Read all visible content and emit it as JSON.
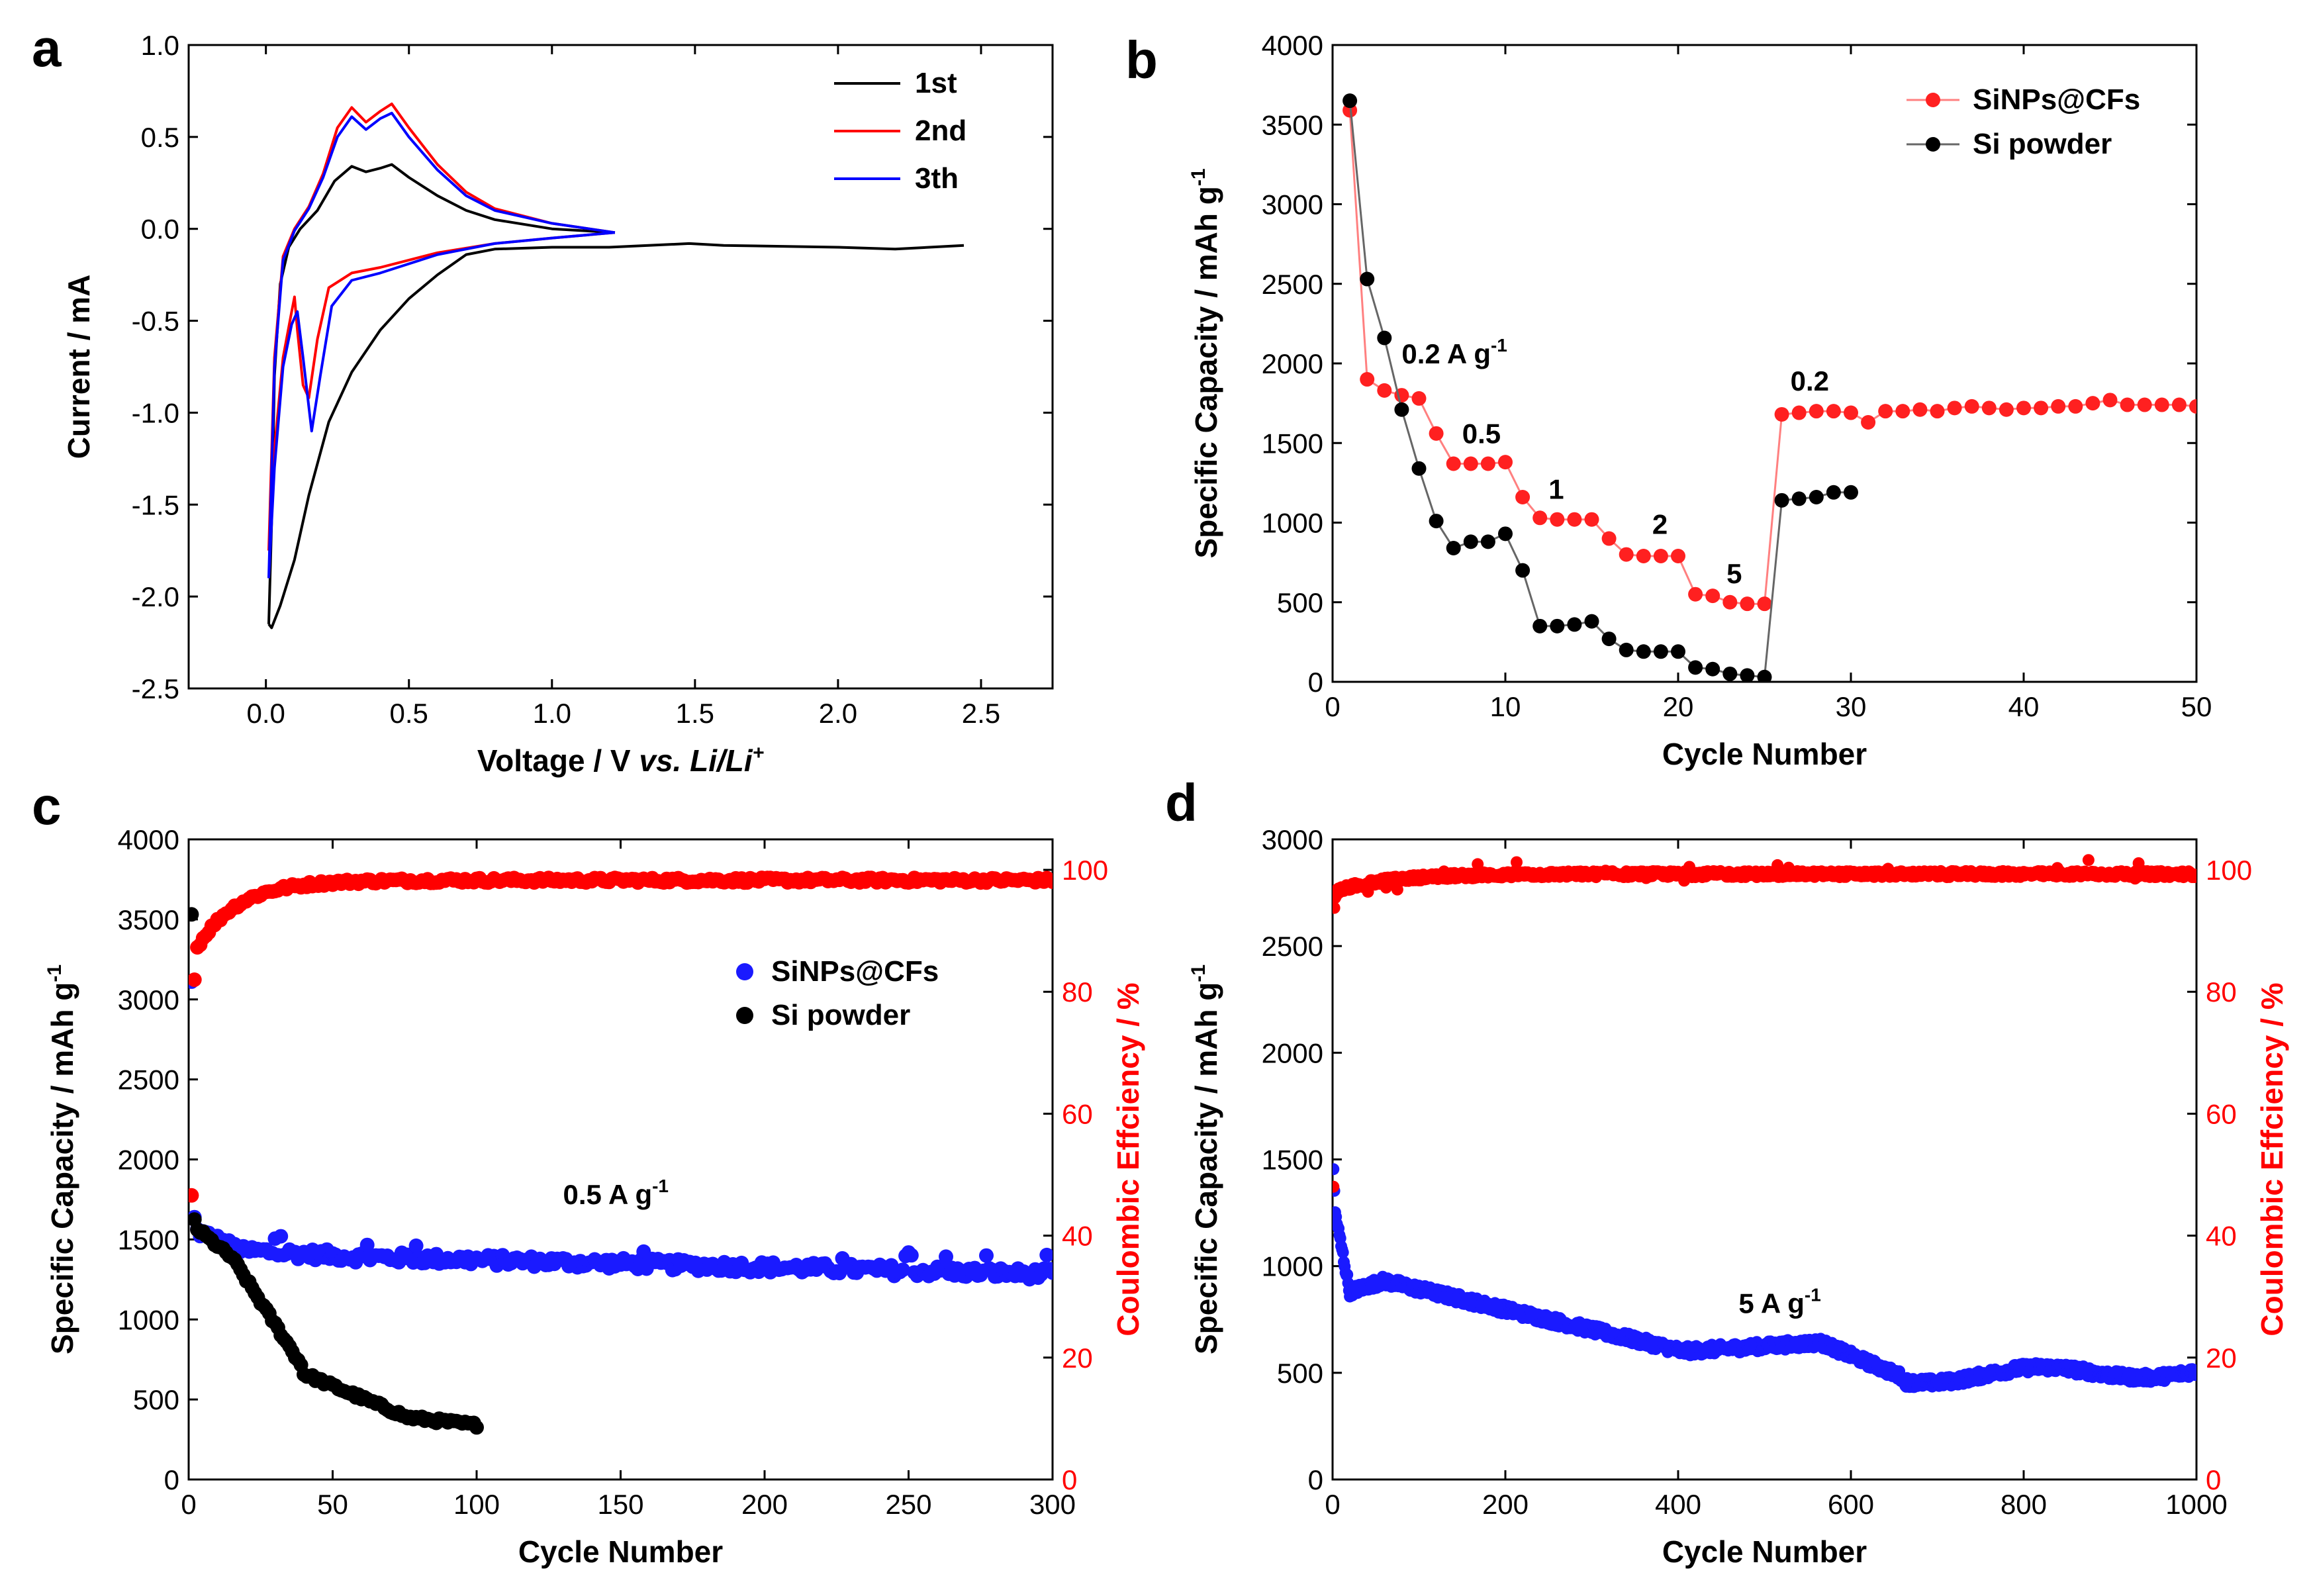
{
  "colors": {
    "black": "#000000",
    "red": "#ff0000",
    "blue": "#0000ff",
    "sinp": "#ff2020",
    "dot_blue": "#1a1aff"
  },
  "chart_data": [
    {
      "id": "a",
      "letter": "a",
      "type": "line",
      "xlabel_main": "Voltage / V ",
      "xlabel_italic": "vs. Li/Li",
      "xlabel_sup": "+",
      "ylabel": "Current / mA",
      "xlim": [
        -0.27,
        2.75
      ],
      "ylim": [
        -2.5,
        1.0
      ],
      "xticks": [
        "0.0",
        "0.5",
        "1.0",
        "1.5",
        "2.0",
        "2.5"
      ],
      "xtick_values": [
        0,
        0.5,
        1.0,
        1.5,
        2.0,
        2.5
      ],
      "yticks": [
        "-2.5",
        "-2.0",
        "-1.5",
        "-1.0",
        "-0.5",
        "0.0",
        "0.5",
        "1.0"
      ],
      "ytick_values": [
        -2.5,
        -2.0,
        -1.5,
        -1.0,
        -0.5,
        0.0,
        0.5,
        1.0
      ],
      "legend": [
        "1st",
        "2nd",
        "3th"
      ],
      "series": [
        {
          "name": "1st",
          "color": "#000000",
          "points": [
            [
              0.01,
              -2.15
            ],
            [
              0.02,
              -2.17
            ],
            [
              0.05,
              -2.05
            ],
            [
              0.1,
              -1.8
            ],
            [
              0.15,
              -1.45
            ],
            [
              0.22,
              -1.05
            ],
            [
              0.3,
              -0.78
            ],
            [
              0.4,
              -0.55
            ],
            [
              0.5,
              -0.38
            ],
            [
              0.6,
              -0.25
            ],
            [
              0.7,
              -0.14
            ],
            [
              0.8,
              -0.11
            ],
            [
              1.0,
              -0.1
            ],
            [
              1.2,
              -0.1
            ],
            [
              1.48,
              -0.08
            ],
            [
              1.6,
              -0.09
            ],
            [
              2.0,
              -0.1
            ],
            [
              2.2,
              -0.11
            ],
            [
              2.44,
              -0.09
            ],
            null,
            [
              0.01,
              -2.15
            ],
            [
              0.02,
              -1.6
            ],
            [
              0.03,
              -0.8
            ],
            [
              0.05,
              -0.3
            ],
            [
              0.08,
              -0.1
            ],
            [
              0.12,
              0.0
            ],
            [
              0.18,
              0.1
            ],
            [
              0.24,
              0.26
            ],
            [
              0.3,
              0.34
            ],
            [
              0.35,
              0.31
            ],
            [
              0.4,
              0.33
            ],
            [
              0.44,
              0.35
            ],
            [
              0.5,
              0.28
            ],
            [
              0.6,
              0.18
            ],
            [
              0.7,
              0.1
            ],
            [
              0.8,
              0.05
            ],
            [
              1.0,
              0.0
            ],
            [
              1.22,
              -0.02
            ]
          ]
        },
        {
          "name": "2nd",
          "color": "#ff0000",
          "points": [
            [
              0.01,
              -1.75
            ],
            [
              0.03,
              -1.2
            ],
            [
              0.06,
              -0.7
            ],
            [
              0.09,
              -0.45
            ],
            [
              0.1,
              -0.37
            ],
            [
              0.11,
              -0.55
            ],
            [
              0.13,
              -0.85
            ],
            [
              0.15,
              -0.92
            ],
            [
              0.18,
              -0.6
            ],
            [
              0.22,
              -0.32
            ],
            [
              0.3,
              -0.24
            ],
            [
              0.4,
              -0.21
            ],
            [
              0.5,
              -0.17
            ],
            [
              0.6,
              -0.13
            ],
            [
              0.8,
              -0.08
            ],
            [
              1.0,
              -0.05
            ],
            [
              1.22,
              -0.02
            ],
            null,
            [
              0.01,
              -1.75
            ],
            [
              0.03,
              -0.7
            ],
            [
              0.06,
              -0.15
            ],
            [
              0.1,
              0.0
            ],
            [
              0.15,
              0.12
            ],
            [
              0.2,
              0.3
            ],
            [
              0.25,
              0.55
            ],
            [
              0.3,
              0.66
            ],
            [
              0.35,
              0.58
            ],
            [
              0.4,
              0.64
            ],
            [
              0.44,
              0.68
            ],
            [
              0.5,
              0.55
            ],
            [
              0.6,
              0.35
            ],
            [
              0.7,
              0.2
            ],
            [
              0.8,
              0.11
            ],
            [
              1.0,
              0.03
            ],
            [
              1.22,
              -0.02
            ]
          ]
        },
        {
          "name": "3th",
          "color": "#0000ff",
          "points": [
            [
              0.01,
              -1.9
            ],
            [
              0.03,
              -1.3
            ],
            [
              0.06,
              -0.75
            ],
            [
              0.09,
              -0.52
            ],
            [
              0.11,
              -0.45
            ],
            [
              0.13,
              -0.7
            ],
            [
              0.16,
              -1.1
            ],
            [
              0.19,
              -0.8
            ],
            [
              0.23,
              -0.42
            ],
            [
              0.3,
              -0.28
            ],
            [
              0.4,
              -0.24
            ],
            [
              0.5,
              -0.19
            ],
            [
              0.6,
              -0.14
            ],
            [
              0.8,
              -0.08
            ],
            [
              1.0,
              -0.05
            ],
            [
              1.22,
              -0.02
            ],
            null,
            [
              0.01,
              -1.9
            ],
            [
              0.03,
              -0.75
            ],
            [
              0.06,
              -0.17
            ],
            [
              0.1,
              -0.01
            ],
            [
              0.15,
              0.11
            ],
            [
              0.2,
              0.28
            ],
            [
              0.25,
              0.5
            ],
            [
              0.3,
              0.61
            ],
            [
              0.35,
              0.54
            ],
            [
              0.4,
              0.6
            ],
            [
              0.44,
              0.63
            ],
            [
              0.5,
              0.5
            ],
            [
              0.6,
              0.32
            ],
            [
              0.7,
              0.18
            ],
            [
              0.8,
              0.1
            ],
            [
              1.0,
              0.03
            ],
            [
              1.22,
              -0.02
            ]
          ]
        }
      ]
    },
    {
      "id": "b",
      "letter": "b",
      "type": "scatter",
      "xlabel": "Cycle Number",
      "ylabel": "Specific Capacity / mAh g",
      "ylabel_sup": "-1",
      "xlim": [
        0,
        50
      ],
      "ylim": [
        0,
        4000
      ],
      "xticks": [
        "0",
        "10",
        "20",
        "30",
        "40",
        "50"
      ],
      "xtick_values": [
        0,
        10,
        20,
        30,
        40,
        50
      ],
      "yticks": [
        "0",
        "500",
        "1000",
        "1500",
        "2000",
        "2500",
        "3000",
        "3500",
        "4000"
      ],
      "ytick_values": [
        0,
        500,
        1000,
        1500,
        2000,
        2500,
        3000,
        3500,
        4000
      ],
      "legend": [
        "SiNPs@CFs",
        "Si powder"
      ],
      "annotations": [
        {
          "text": "0.2 A g",
          "sup": "-1",
          "x": 4,
          "y": 2000
        },
        {
          "text": "0.5",
          "x": 7.5,
          "y": 1500
        },
        {
          "text": "1",
          "x": 12.5,
          "y": 1150
        },
        {
          "text": "2",
          "x": 18.5,
          "y": 930
        },
        {
          "text": "5",
          "x": 22.8,
          "y": 620
        },
        {
          "text": "0.2",
          "x": 26.5,
          "y": 1830
        }
      ],
      "series": [
        {
          "name": "SiNPs@CFs",
          "color": "#ff2020",
          "line": true,
          "x": [
            1,
            2,
            3,
            4,
            5,
            6,
            7,
            8,
            9,
            10,
            11,
            12,
            13,
            14,
            15,
            16,
            17,
            18,
            19,
            20,
            21,
            22,
            23,
            24,
            25,
            26,
            27,
            28,
            29,
            30,
            31,
            32,
            33,
            34,
            35,
            36,
            37,
            38,
            39,
            40,
            41,
            42,
            43,
            44,
            45,
            46,
            47,
            48,
            49,
            50
          ],
          "y": [
            3590,
            1900,
            1830,
            1800,
            1780,
            1560,
            1370,
            1370,
            1370,
            1380,
            1160,
            1030,
            1020,
            1020,
            1020,
            900,
            800,
            790,
            790,
            790,
            550,
            540,
            500,
            490,
            490,
            1680,
            1690,
            1700,
            1700,
            1690,
            1630,
            1700,
            1700,
            1710,
            1700,
            1720,
            1730,
            1720,
            1710,
            1720,
            1720,
            1730,
            1730,
            1750,
            1770,
            1740,
            1740,
            1740,
            1740,
            1730
          ]
        },
        {
          "name": "Si powder",
          "color": "#000000",
          "line": true,
          "x": [
            1,
            2,
            3,
            4,
            5,
            6,
            7,
            8,
            9,
            10,
            11,
            12,
            13,
            14,
            15,
            16,
            17,
            18,
            19,
            20,
            21,
            22,
            23,
            24,
            25,
            26,
            27,
            28,
            29,
            30
          ],
          "y": [
            3650,
            2530,
            2160,
            1710,
            1340,
            1010,
            840,
            880,
            880,
            930,
            700,
            350,
            350,
            360,
            380,
            270,
            200,
            190,
            190,
            190,
            90,
            80,
            50,
            40,
            30,
            1140,
            1150,
            1160,
            1190,
            1190
          ]
        }
      ]
    },
    {
      "id": "c",
      "letter": "c",
      "type": "scatter",
      "xlabel": "Cycle Number",
      "ylabel": "Specific Capacity / mAh g",
      "ylabel_sup": "-1",
      "y2label": "Coulombic Effciency / %",
      "xlim": [
        0,
        300
      ],
      "ylim": [
        0,
        4000
      ],
      "y2lim": [
        0,
        105
      ],
      "xticks": [
        "0",
        "50",
        "100",
        "150",
        "200",
        "250",
        "300"
      ],
      "xtick_values": [
        0,
        50,
        100,
        150,
        200,
        250,
        300
      ],
      "yticks": [
        "0",
        "500",
        "1000",
        "1500",
        "2000",
        "2500",
        "3000",
        "3500",
        "4000"
      ],
      "ytick_values": [
        0,
        500,
        1000,
        1500,
        2000,
        2500,
        3000,
        3500,
        4000
      ],
      "y2ticks": [
        "0",
        "20",
        "40",
        "60",
        "80",
        "100"
      ],
      "y2tick_values": [
        0,
        20,
        40,
        60,
        80,
        100
      ],
      "legend": [
        "SiNPs@CFs",
        "Si powder"
      ],
      "annotations": [
        {
          "text": "0.5 A g",
          "sup": "-1",
          "x": 130,
          "y": 1720
        }
      ],
      "series": [
        {
          "name": "SiNPs@CFs capacity",
          "color": "#1a1aff",
          "axis": "y",
          "model": "c_sinp",
          "n": 300
        },
        {
          "name": "Si powder capacity",
          "color": "#000000",
          "axis": "y",
          "model": "c_si",
          "n": 100
        },
        {
          "name": "Coulombic efficiency",
          "color": "#ff0000",
          "axis": "y2",
          "model": "c_ce",
          "n": 300
        }
      ]
    },
    {
      "id": "d",
      "letter": "d",
      "type": "scatter",
      "xlabel": "Cycle Number",
      "ylabel": "Specific Capacity / mAh g",
      "ylabel_sup": "-1",
      "y2label": "Coulombic Effciency / %",
      "xlim": [
        0,
        1000
      ],
      "ylim": [
        0,
        3000
      ],
      "y2lim": [
        0,
        105
      ],
      "xticks": [
        "0",
        "200",
        "400",
        "600",
        "800",
        "1000"
      ],
      "xtick_values": [
        0,
        200,
        400,
        600,
        800,
        1000
      ],
      "yticks": [
        "0",
        "500",
        "1000",
        "1500",
        "2000",
        "2500",
        "3000"
      ],
      "ytick_values": [
        0,
        500,
        1000,
        1500,
        2000,
        2500,
        3000
      ],
      "y2ticks": [
        "0",
        "20",
        "40",
        "60",
        "80",
        "100"
      ],
      "y2tick_values": [
        0,
        20,
        40,
        60,
        80,
        100
      ],
      "annotations": [
        {
          "text": "5 A g",
          "sup": "-1",
          "x": 470,
          "y": 780
        }
      ],
      "series": [
        {
          "name": "SiNPs@CFs capacity",
          "color": "#1a1aff",
          "axis": "y",
          "model": "d_sinp",
          "n": 1000
        },
        {
          "name": "Coulombic efficiency",
          "color": "#ff0000",
          "axis": "y2",
          "model": "d_ce",
          "n": 1000
        }
      ]
    }
  ]
}
